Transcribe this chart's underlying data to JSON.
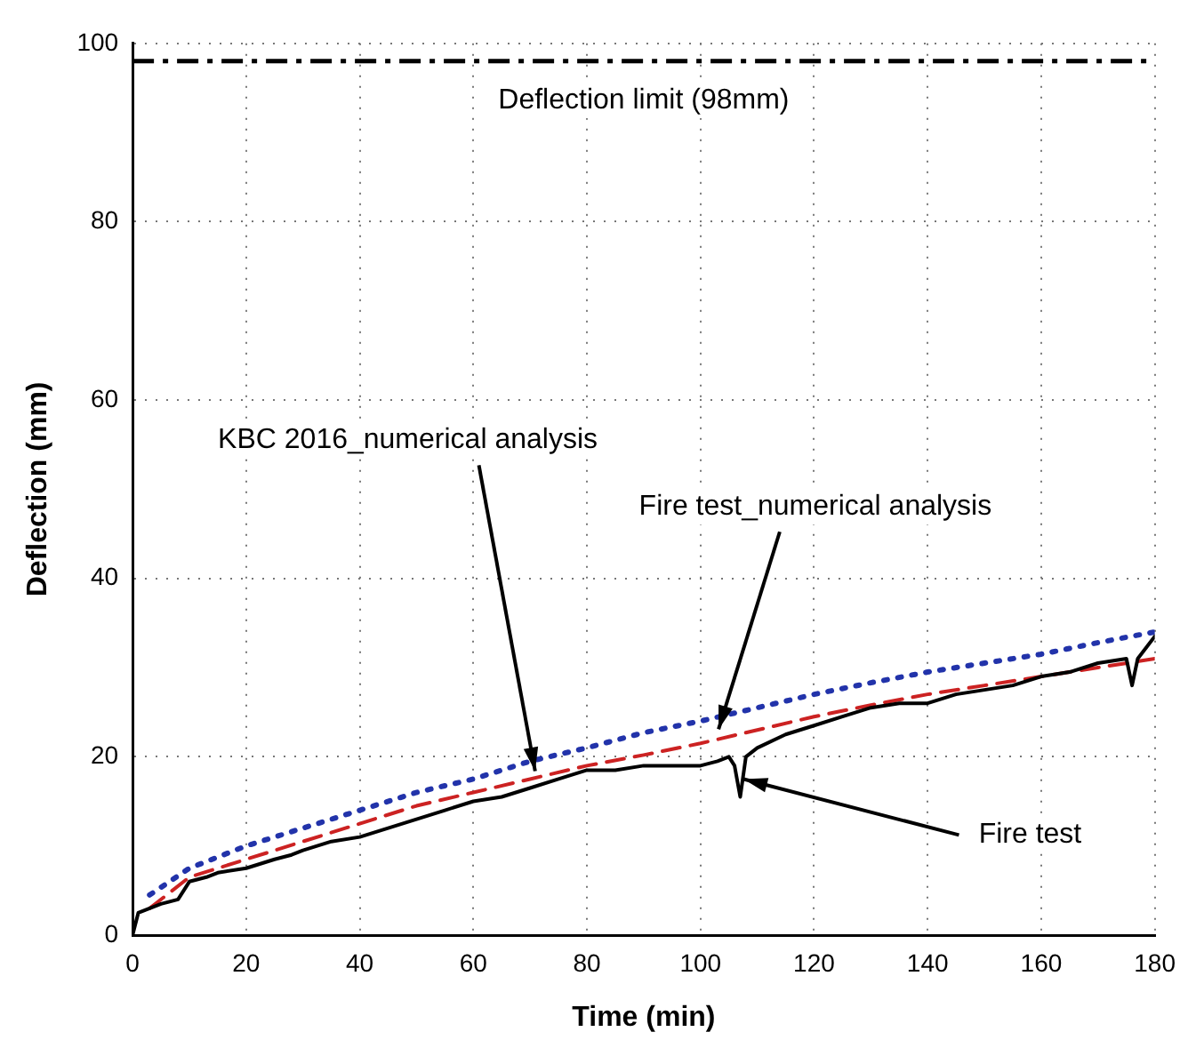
{
  "chart_data": {
    "type": "line",
    "xlabel": "Time (min)",
    "ylabel": "Deflection (mm)",
    "xlim": [
      0,
      180
    ],
    "xticks": [
      0,
      20,
      40,
      60,
      80,
      100,
      120,
      140,
      160,
      180
    ],
    "ylim": [
      0,
      100
    ],
    "yticks": [
      0,
      20,
      40,
      60,
      80,
      100
    ],
    "grid": true,
    "legend": false,
    "series": [
      {
        "color": "#000000",
        "line_style": "solid",
        "x": [
          0,
          1,
          3,
          5,
          8,
          10,
          13,
          15,
          20,
          25,
          28,
          30,
          35,
          40,
          45,
          50,
          55,
          60,
          65,
          70,
          75,
          80,
          85,
          90,
          95,
          100,
          103,
          105,
          106,
          107,
          108,
          110,
          115,
          120,
          125,
          130,
          135,
          140,
          145,
          150,
          155,
          160,
          165,
          170,
          175,
          176,
          177,
          180
        ],
        "values": [
          0,
          2.5,
          3,
          3.5,
          4,
          6,
          6.5,
          7,
          7.5,
          8.5,
          9,
          9.5,
          10.5,
          11,
          12,
          13,
          14,
          15,
          15.5,
          16.5,
          17.5,
          18.5,
          18.5,
          19,
          19,
          19,
          19.5,
          20,
          19,
          15.5,
          20,
          21,
          22.5,
          23.5,
          24.5,
          25.5,
          26,
          26,
          27,
          27.5,
          28,
          29,
          29.5,
          30.5,
          31,
          28,
          31,
          33.5
        ]
      },
      {
        "color": "#cc2222",
        "line_style": "dashed",
        "x": [
          3,
          10,
          20,
          30,
          40,
          50,
          60,
          70,
          80,
          90,
          100,
          110,
          120,
          130,
          140,
          150,
          160,
          170,
          180
        ],
        "values": [
          3,
          6.5,
          8.5,
          10.5,
          12.5,
          14.5,
          16,
          17.5,
          19,
          20.2,
          21.5,
          23,
          24.5,
          25.8,
          27,
          28,
          29,
          30,
          31
        ]
      },
      {
        "color": "#2233aa",
        "line_style": "dotted",
        "x": [
          3,
          10,
          20,
          30,
          40,
          50,
          60,
          70,
          80,
          90,
          100,
          110,
          120,
          130,
          140,
          150,
          160,
          170,
          180
        ],
        "values": [
          4.5,
          7.5,
          10,
          12,
          14,
          16,
          17.5,
          19.5,
          21,
          22.7,
          24,
          25.5,
          27,
          28.3,
          29.5,
          30.5,
          31.5,
          32.8,
          34
        ]
      }
    ],
    "ref_lines": [
      {
        "axis": "y",
        "value": 98,
        "label": "Deflection limit (98mm)",
        "line_style": "dashdot",
        "color": "#000000"
      }
    ],
    "annotations": [
      {
        "text": "KBC 2016_numerical analysis",
        "x": 71,
        "y": 18
      },
      {
        "text": "Fire test_numerical analysis",
        "x": 103,
        "y": 22.7
      },
      {
        "text": "Fire test",
        "x": 107,
        "y": 17.6
      }
    ]
  }
}
